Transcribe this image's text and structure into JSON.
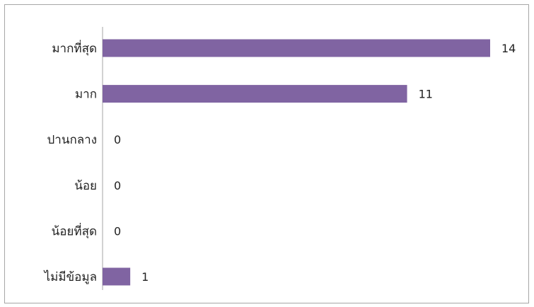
{
  "chart_data": {
    "type": "bar",
    "orientation": "horizontal",
    "categories": [
      "มากที่สุด",
      "มาก",
      "ปานกลาง",
      "น้อย",
      "น้อยที่สุด",
      "ไม่มีข้อมูล"
    ],
    "values": [
      14,
      11,
      0,
      0,
      0,
      1
    ],
    "xlim": [
      0,
      14
    ],
    "grid": false,
    "colors": {
      "bar": "#8064a2",
      "axis": "#a6a6a6",
      "frame": "#a6a6a6"
    }
  }
}
